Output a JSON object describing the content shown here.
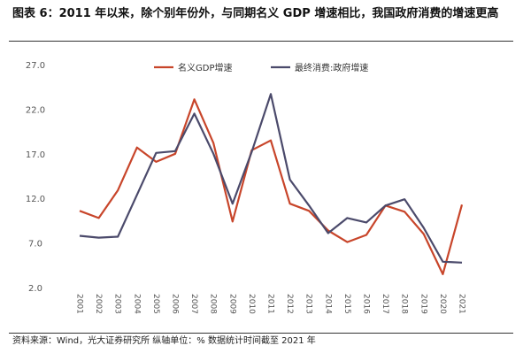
{
  "header": {
    "title": "图表 6：2011 年以来，除个别年份外，与同期名义 GDP 增速相比，我国政府消费的增速更高"
  },
  "footer": {
    "source": "资料来源：Wind，光大证券研究所   纵轴单位：%    数据统计时间截至 2021 年"
  },
  "chart_data": {
    "type": "line",
    "x": [
      "2001",
      "2002",
      "2003",
      "2004",
      "2005",
      "2006",
      "2007",
      "2008",
      "2009",
      "2010",
      "2011",
      "2012",
      "2013",
      "2014",
      "2015",
      "2016",
      "2017",
      "2018",
      "2019",
      "2020",
      "2021"
    ],
    "ylim": [
      2.0,
      27.0
    ],
    "yticks": [
      "2.0",
      "7.0",
      "12.0",
      "17.0",
      "22.0",
      "27.0"
    ],
    "grid": false,
    "legend_position": "top",
    "series": [
      {
        "name": "名义GDP增速",
        "color": "#C8452A",
        "values": [
          10.6,
          9.8,
          12.9,
          17.7,
          16.1,
          17.0,
          23.1,
          18.2,
          9.4,
          17.4,
          18.5,
          11.4,
          10.6,
          8.4,
          7.1,
          7.9,
          11.2,
          10.5,
          8.0,
          3.5,
          11.3
        ]
      },
      {
        "name": "最终消费:政府增速",
        "color": "#4B4A6B",
        "values": [
          7.8,
          7.6,
          7.7,
          12.4,
          17.1,
          17.3,
          21.5,
          17.0,
          11.4,
          17.2,
          23.7,
          14.1,
          11.2,
          8.1,
          9.8,
          9.3,
          11.2,
          11.9,
          8.7,
          4.9,
          4.8
        ]
      }
    ]
  }
}
